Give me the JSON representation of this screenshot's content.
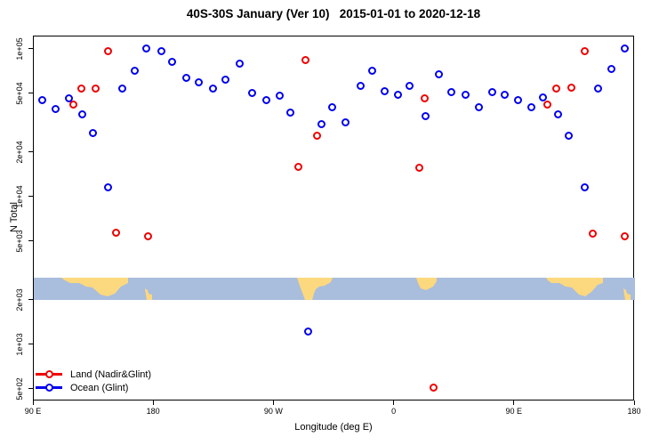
{
  "title": "40S-30S January (Ver 10)   2015-01-01 to 2020-12-18",
  "chart_data": {
    "type": "scatter",
    "title": "40S-30S January (Ver 10)   2015-01-01 to 2020-12-18",
    "xlabel": "Longitude (deg E)",
    "ylabel": "N Total",
    "y_scale": "log",
    "grid": false,
    "legend_position": "bottom-left",
    "xlim": [
      90,
      540
    ],
    "ylim": [
      417,
      123000
    ],
    "x_ticks": [
      {
        "lon": 90,
        "label": "90 E"
      },
      {
        "lon": 180,
        "label": "180"
      },
      {
        "lon": 270,
        "label": "90 W"
      },
      {
        "lon": 360,
        "label": "0"
      },
      {
        "lon": 450,
        "label": "90 E"
      },
      {
        "lon": 540,
        "label": "180"
      }
    ],
    "y_ticks": [
      {
        "value": 100000,
        "label": "1e+05"
      },
      {
        "value": 50000,
        "label": "5e+04"
      },
      {
        "value": 20000,
        "label": "2e+04"
      },
      {
        "value": 10000,
        "label": "1e+04"
      },
      {
        "value": 5000,
        "label": "5e+03"
      },
      {
        "value": 2000,
        "label": "2e+03"
      },
      {
        "value": 1000,
        "label": "1e+03"
      },
      {
        "value": 500,
        "label": "5e+02"
      }
    ],
    "series": [
      {
        "name": "Land (Nadir&Glint)",
        "color": "#ee0000",
        "points": [
          [
            120,
            42000
          ],
          [
            126,
            54000
          ],
          [
            137,
            54000
          ],
          [
            146,
            96000
          ],
          [
            152,
            5700
          ],
          [
            176,
            5400
          ],
          [
            289,
            16000
          ],
          [
            294,
            84000
          ],
          [
            303,
            26000
          ],
          [
            379,
            15600
          ],
          [
            383,
            46000
          ],
          [
            390,
            510
          ],
          [
            475,
            42000
          ],
          [
            482,
            54000
          ],
          [
            493,
            55000
          ],
          [
            503,
            96000
          ],
          [
            509,
            5600
          ],
          [
            533,
            5400
          ]
        ]
      },
      {
        "name": "Ocean (Glint)",
        "color": "#0000ee",
        "points": [
          [
            97,
            45000
          ],
          [
            107,
            39000
          ],
          [
            117,
            46000
          ],
          [
            127,
            36000
          ],
          [
            135,
            27000
          ],
          [
            146,
            11500
          ],
          [
            157,
            54000
          ],
          [
            166,
            71000
          ],
          [
            175,
            100000
          ],
          [
            186,
            97000
          ],
          [
            194,
            82000
          ],
          [
            205,
            64000
          ],
          [
            214,
            59000
          ],
          [
            225,
            54000
          ],
          [
            234,
            62000
          ],
          [
            245,
            79000
          ],
          [
            254,
            50000
          ],
          [
            265,
            45000
          ],
          [
            275,
            48000
          ],
          [
            283,
            37000
          ],
          [
            296,
            1230
          ],
          [
            306,
            31000
          ],
          [
            314,
            40500
          ],
          [
            324,
            32000
          ],
          [
            335,
            56000
          ],
          [
            344,
            71000
          ],
          [
            353,
            52000
          ],
          [
            363,
            49000
          ],
          [
            372,
            56000
          ],
          [
            384,
            35000
          ],
          [
            394,
            67000
          ],
          [
            403,
            51000
          ],
          [
            414,
            49000
          ],
          [
            424,
            40000
          ],
          [
            434,
            51000
          ],
          [
            443,
            49000
          ],
          [
            453,
            45000
          ],
          [
            463,
            40000
          ],
          [
            472,
            47000
          ],
          [
            483,
            36000
          ],
          [
            491,
            26000
          ],
          [
            503,
            11500
          ],
          [
            513,
            54000
          ],
          [
            523,
            73000
          ],
          [
            533,
            101000
          ]
        ]
      }
    ],
    "map_strip": {
      "description": "land-ocean longitude strip for 40S-30S band",
      "value_range": [
        2000,
        2830
      ],
      "ocean_color": "#a9bddd",
      "land_color": "#fcd87f",
      "land_shapes": [
        {
          "name": "australia-west-pass-1",
          "points": [
            [
              31,
              0
            ],
            [
              106,
              0
            ],
            [
              106,
              6
            ],
            [
              98,
              10
            ],
            [
              91,
              18
            ],
            [
              83,
              21
            ],
            [
              75,
              19
            ],
            [
              66,
              11
            ],
            [
              59,
              10
            ],
            [
              51,
              6
            ],
            [
              41,
              6
            ],
            [
              35,
              3
            ]
          ]
        },
        {
          "name": "new-zealand-pass-1",
          "points": [
            [
              125,
              12
            ],
            [
              128,
              14
            ],
            [
              129,
              18
            ],
            [
              133,
              19
            ],
            [
              133,
              25
            ],
            [
              127,
              25
            ],
            [
              126,
              19
            ]
          ]
        },
        {
          "name": "south-america",
          "points": [
            [
              296,
              0
            ],
            [
              336,
              0
            ],
            [
              334,
              5
            ],
            [
              327,
              9
            ],
            [
              321,
              10
            ],
            [
              317,
              13
            ],
            [
              315,
              18
            ],
            [
              313,
              25
            ],
            [
              305,
              25
            ],
            [
              302,
              17
            ],
            [
              299,
              9
            ]
          ]
        },
        {
          "name": "south-africa",
          "points": [
            [
              430,
              0
            ],
            [
              453,
              0
            ],
            [
              453,
              4
            ],
            [
              449,
              10
            ],
            [
              441,
              14
            ],
            [
              435,
              12
            ],
            [
              432,
              6
            ]
          ]
        },
        {
          "name": "australia-pass-2",
          "points": [
            [
              576,
              0
            ],
            [
              640,
              0
            ],
            [
              640,
              6
            ],
            [
              634,
              8
            ],
            [
              627,
              16
            ],
            [
              620,
              21
            ],
            [
              613,
              19
            ],
            [
              605,
              11
            ],
            [
              598,
              10
            ],
            [
              591,
              6
            ],
            [
              582,
              6
            ],
            [
              578,
              3
            ]
          ]
        },
        {
          "name": "new-zealand-pass-2",
          "points": [
            [
              663,
              12
            ],
            [
              666,
              14
            ],
            [
              667,
              18
            ],
            [
              671,
              19
            ],
            [
              671,
              25
            ],
            [
              665,
              25
            ],
            [
              664,
              19
            ]
          ]
        }
      ]
    }
  },
  "legend": {
    "items": [
      {
        "label": "Land (Nadir&Glint)",
        "color": "#ee0000"
      },
      {
        "label": "Ocean (Glint)",
        "color": "#0000ee"
      }
    ]
  }
}
